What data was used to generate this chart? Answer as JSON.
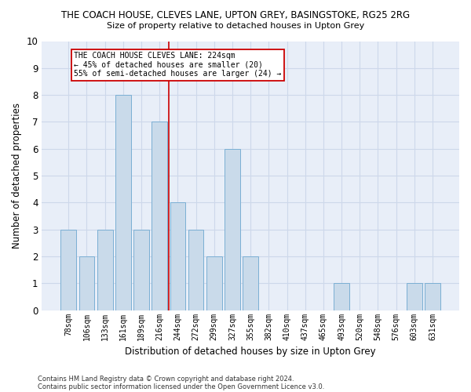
{
  "title": "THE COACH HOUSE, CLEVES LANE, UPTON GREY, BASINGSTOKE, RG25 2RG",
  "subtitle": "Size of property relative to detached houses in Upton Grey",
  "xlabel": "Distribution of detached houses by size in Upton Grey",
  "ylabel": "Number of detached properties",
  "categories": [
    "78sqm",
    "106sqm",
    "133sqm",
    "161sqm",
    "189sqm",
    "216sqm",
    "244sqm",
    "272sqm",
    "299sqm",
    "327sqm",
    "355sqm",
    "382sqm",
    "410sqm",
    "437sqm",
    "465sqm",
    "493sqm",
    "520sqm",
    "548sqm",
    "576sqm",
    "603sqm",
    "631sqm"
  ],
  "values": [
    3,
    2,
    3,
    8,
    3,
    7,
    4,
    3,
    2,
    6,
    2,
    0,
    0,
    0,
    0,
    1,
    0,
    0,
    0,
    1,
    1
  ],
  "bar_color": "#c9daea",
  "bar_edge_color": "#7bafd4",
  "vline_color": "#cc0000",
  "ylim": [
    0,
    10
  ],
  "yticks": [
    0,
    1,
    2,
    3,
    4,
    5,
    6,
    7,
    8,
    9,
    10
  ],
  "annotation_title": "THE COACH HOUSE CLEVES LANE: 224sqm",
  "annotation_line1": "← 45% of detached houses are smaller (20)",
  "annotation_line2": "55% of semi-detached houses are larger (24) →",
  "annotation_box_color": "#ffffff",
  "annotation_border_color": "#cc0000",
  "grid_color": "#cdd8ea",
  "background_color": "#e8eef8",
  "footer1": "Contains HM Land Registry data © Crown copyright and database right 2024.",
  "footer2": "Contains public sector information licensed under the Open Government Licence v3.0."
}
